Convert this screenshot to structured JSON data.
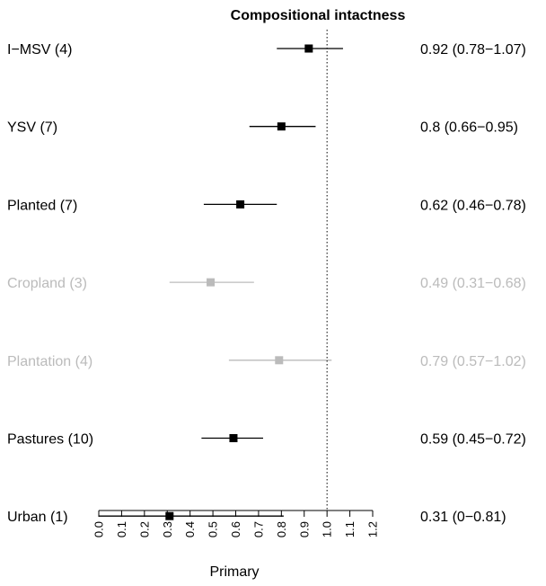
{
  "chart_data": {
    "type": "forest",
    "title": "Compositional intactness",
    "xlabel": "Primary",
    "xlim": [
      0.0,
      1.2
    ],
    "reference_line": 1.0,
    "x_ticks": [
      "0.0",
      "0.1",
      "0.2",
      "0.3",
      "0.4",
      "0.5",
      "0.6",
      "0.7",
      "0.8",
      "0.9",
      "1.0",
      "1.1",
      "1.2"
    ],
    "colors": {
      "significant": "#000000",
      "muted": "#bbbbbb"
    },
    "rows": [
      {
        "label": "I−MSV (4)",
        "estimate": 0.92,
        "lower": 0.78,
        "upper": 1.07,
        "ci_text": "0.92 (0.78−1.07)",
        "muted": false
      },
      {
        "label": "YSV (7)",
        "estimate": 0.8,
        "lower": 0.66,
        "upper": 0.95,
        "ci_text": "0.8 (0.66−0.95)",
        "muted": false
      },
      {
        "label": "Planted (7)",
        "estimate": 0.62,
        "lower": 0.46,
        "upper": 0.78,
        "ci_text": "0.62 (0.46−0.78)",
        "muted": false
      },
      {
        "label": "Cropland (3)",
        "estimate": 0.49,
        "lower": 0.31,
        "upper": 0.68,
        "ci_text": "0.49 (0.31−0.68)",
        "muted": true
      },
      {
        "label": "Plantation (4)",
        "estimate": 0.79,
        "lower": 0.57,
        "upper": 1.02,
        "ci_text": "0.79 (0.57−1.02)",
        "muted": true
      },
      {
        "label": "Pastures (10)",
        "estimate": 0.59,
        "lower": 0.45,
        "upper": 0.72,
        "ci_text": "0.59 (0.45−0.72)",
        "muted": false
      },
      {
        "label": "Urban (1)",
        "estimate": 0.31,
        "lower": 0.0,
        "upper": 0.81,
        "ci_text": "0.31 (0−0.81)",
        "muted": false
      }
    ]
  }
}
